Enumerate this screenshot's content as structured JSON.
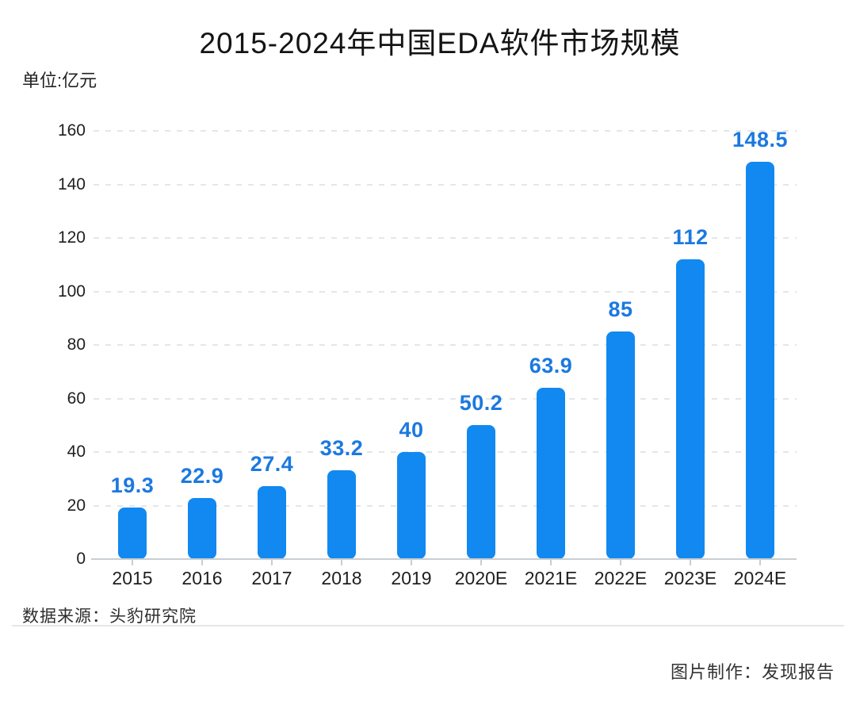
{
  "title": "2015-2024年中国EDA软件市场规模",
  "unit_label": "单位:亿元",
  "footer": {
    "source": "数据来源：头豹研究院",
    "credit": "图片制作：发现报告"
  },
  "colors": {
    "bar": "#1189f0",
    "value_label": "#1b79e0",
    "axis_line": "#c9ced3",
    "gridline": "#e4e6e8",
    "text": "#1f1f1f"
  },
  "chart_data": {
    "type": "bar",
    "title": "2015-2024年中国EDA软件市场规模",
    "unit": "亿元",
    "categories": [
      "2015",
      "2016",
      "2017",
      "2018",
      "2019",
      "2020E",
      "2021E",
      "2022E",
      "2023E",
      "2024E"
    ],
    "values": [
      19.3,
      22.9,
      27.4,
      33.2,
      40,
      50.2,
      63.9,
      85,
      112,
      148.5
    ],
    "value_labels": [
      "19.3",
      "22.9",
      "27.4",
      "33.2",
      "40",
      "50.2",
      "63.9",
      "85",
      "112",
      "148.5"
    ],
    "xlabel": "",
    "ylabel": "单位:亿元",
    "ylim": [
      0,
      160
    ],
    "ytick_step": 20,
    "yticks": [
      0,
      20,
      40,
      60,
      80,
      100,
      120,
      140,
      160
    ],
    "grid": "horizontal-dashed",
    "legend": "none",
    "bar_label_position": "above"
  }
}
